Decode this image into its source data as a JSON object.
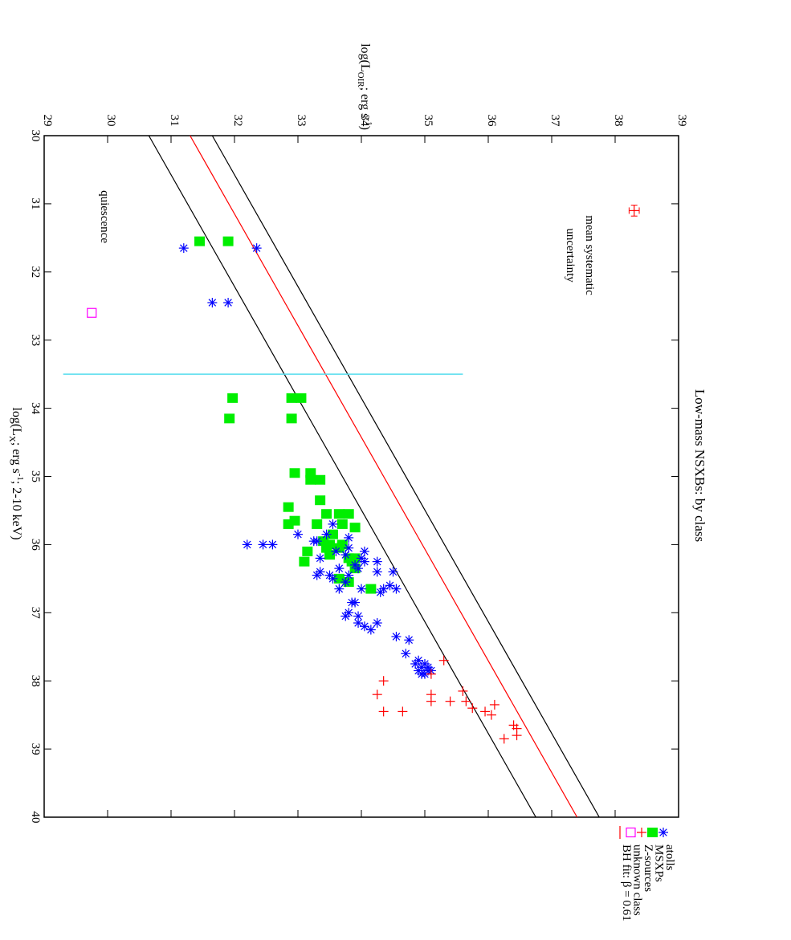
{
  "chart_data": {
    "type": "scatter",
    "title": "Low-mass NSXBs: by class",
    "xlabel": "log(L_X; erg s^-1; 2-10 keV)",
    "ylabel": "log(L_OIR; erg s^-1)",
    "xlim": [
      30,
      40
    ],
    "ylim": [
      29,
      39
    ],
    "x_ticks": [
      "30",
      "31",
      "32",
      "33",
      "34",
      "35",
      "36",
      "37",
      "38",
      "39",
      "40"
    ],
    "y_ticks": [
      "29",
      "30",
      "31",
      "32",
      "33",
      "34",
      "35",
      "36",
      "37",
      "38",
      "39"
    ],
    "orientation": "rotated 90 degrees clockwise",
    "grid": false,
    "legend_position": "bottom-right",
    "annotations": {
      "quiescence": "quiescence",
      "uncertainty_line1": "mean systematic",
      "uncertainty_line2": "uncertainty"
    },
    "mean_uncertainty": {
      "x": 31.1,
      "y": 38.3,
      "xerr": 0.08,
      "yerr": 0.08
    },
    "quiescence_divider": {
      "x": 33.5,
      "y_from": 29.3,
      "y_to": 35.6
    },
    "fit_lines": {
      "slope": 0.61,
      "center_intercept": 13.0,
      "lower_intercept": 12.35,
      "upper_intercept": 13.35
    },
    "series": [
      {
        "name": "atolls",
        "marker": "star",
        "color": "#0000ff",
        "points": [
          [
            31.65,
            31.2
          ],
          [
            31.65,
            32.35
          ],
          [
            32.45,
            31.65
          ],
          [
            32.45,
            31.9
          ],
          [
            36.0,
            32.2
          ],
          [
            36.0,
            32.45
          ],
          [
            36.0,
            32.6
          ],
          [
            35.85,
            33.0
          ],
          [
            35.95,
            33.25
          ],
          [
            36.1,
            33.6
          ],
          [
            36.2,
            33.35
          ],
          [
            35.95,
            33.3
          ],
          [
            35.85,
            33.45
          ],
          [
            35.7,
            33.55
          ],
          [
            36.45,
            33.3
          ],
          [
            36.4,
            33.35
          ],
          [
            36.5,
            33.55
          ],
          [
            36.45,
            33.5
          ],
          [
            36.35,
            33.65
          ],
          [
            36.65,
            33.65
          ],
          [
            36.55,
            33.75
          ],
          [
            36.45,
            33.8
          ],
          [
            36.3,
            33.9
          ],
          [
            36.15,
            33.75
          ],
          [
            36.05,
            33.8
          ],
          [
            35.9,
            33.8
          ],
          [
            36.2,
            34.0
          ],
          [
            36.1,
            34.05
          ],
          [
            36.25,
            34.05
          ],
          [
            36.35,
            33.95
          ],
          [
            36.25,
            34.25
          ],
          [
            36.4,
            34.25
          ],
          [
            36.65,
            34.0
          ],
          [
            36.7,
            34.3
          ],
          [
            36.65,
            34.35
          ],
          [
            36.6,
            34.45
          ],
          [
            36.65,
            34.55
          ],
          [
            36.4,
            34.5
          ],
          [
            36.85,
            33.85
          ],
          [
            36.85,
            33.9
          ],
          [
            37.0,
            33.8
          ],
          [
            37.05,
            33.95
          ],
          [
            37.15,
            33.95
          ],
          [
            37.05,
            33.75
          ],
          [
            37.15,
            34.25
          ],
          [
            37.25,
            34.15
          ],
          [
            37.2,
            34.05
          ],
          [
            37.35,
            34.55
          ],
          [
            37.4,
            34.75
          ],
          [
            37.6,
            34.7
          ],
          [
            37.7,
            34.9
          ],
          [
            37.75,
            35.0
          ],
          [
            37.8,
            34.95
          ],
          [
            37.85,
            34.9
          ],
          [
            37.9,
            35.0
          ],
          [
            37.85,
            35.1
          ],
          [
            37.8,
            35.05
          ],
          [
            37.9,
            34.95
          ],
          [
            37.75,
            34.85
          ],
          [
            37.85,
            35.05
          ]
        ]
      },
      {
        "name": "MSXPs",
        "marker": "square",
        "color": "#00ee00",
        "points": [
          [
            31.55,
            31.45
          ],
          [
            31.55,
            31.9
          ],
          [
            33.85,
            31.97
          ],
          [
            34.15,
            31.92
          ],
          [
            33.85,
            32.9
          ],
          [
            33.85,
            33.05
          ],
          [
            34.15,
            32.9
          ],
          [
            34.95,
            32.95
          ],
          [
            34.95,
            33.2
          ],
          [
            35.05,
            33.2
          ],
          [
            35.05,
            33.35
          ],
          [
            35.35,
            33.35
          ],
          [
            35.45,
            32.85
          ],
          [
            35.7,
            32.85
          ],
          [
            35.65,
            32.95
          ],
          [
            35.7,
            33.3
          ],
          [
            35.55,
            33.45
          ],
          [
            35.55,
            33.65
          ],
          [
            35.55,
            33.8
          ],
          [
            35.7,
            33.7
          ],
          [
            35.75,
            33.9
          ],
          [
            35.85,
            33.55
          ],
          [
            35.95,
            33.4
          ],
          [
            36.0,
            33.5
          ],
          [
            36.05,
            33.45
          ],
          [
            36.0,
            33.7
          ],
          [
            36.05,
            33.65
          ],
          [
            36.1,
            33.15
          ],
          [
            36.15,
            33.5
          ],
          [
            36.25,
            33.1
          ],
          [
            36.2,
            33.8
          ],
          [
            36.2,
            33.9
          ],
          [
            36.25,
            33.85
          ],
          [
            36.35,
            33.9
          ],
          [
            36.5,
            33.65
          ],
          [
            36.55,
            33.8
          ],
          [
            36.65,
            34.15
          ]
        ]
      },
      {
        "name": "Z-sources",
        "marker": "plus",
        "color": "#ff0000",
        "points": [
          [
            37.7,
            35.3
          ],
          [
            37.9,
            35.1
          ],
          [
            38.0,
            34.35
          ],
          [
            38.2,
            34.25
          ],
          [
            38.2,
            35.1
          ],
          [
            38.3,
            35.1
          ],
          [
            38.3,
            35.4
          ],
          [
            38.45,
            34.35
          ],
          [
            38.45,
            34.65
          ],
          [
            38.15,
            35.6
          ],
          [
            38.3,
            35.65
          ],
          [
            38.4,
            35.75
          ],
          [
            38.45,
            35.95
          ],
          [
            38.5,
            36.05
          ],
          [
            38.35,
            36.1
          ],
          [
            38.65,
            36.4
          ],
          [
            38.7,
            36.45
          ],
          [
            38.8,
            36.45
          ],
          [
            38.85,
            36.25
          ]
        ]
      },
      {
        "name": "unknown class",
        "marker": "open-square",
        "color": "#ff00ff",
        "points": [
          [
            32.6,
            29.75
          ]
        ]
      },
      {
        "name": "BH fit: β = 0.61",
        "marker": "line",
        "color": "#ff0000",
        "points": []
      }
    ]
  }
}
